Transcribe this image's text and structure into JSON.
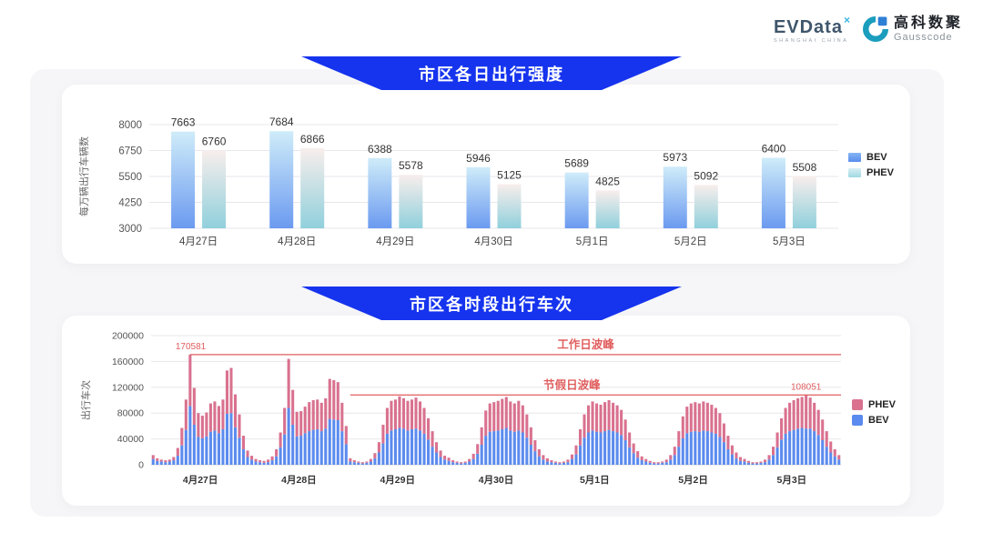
{
  "logo": {
    "evdata_text": "EVData",
    "evdata_sup": "×",
    "evdata_sub": "SHANGHAI CHINA",
    "gausscode_cn": "高科数聚",
    "gausscode_en": "Gausscode"
  },
  "colors": {
    "banner_blue": "#1634ee",
    "panel_gray": "#f6f6f8",
    "bev_blue": "#5b8bee",
    "phev_pink": "#d9718f",
    "annotation_red": "#e15e5e",
    "grid": "#e7e7ec"
  },
  "chart_data": [
    {
      "type": "bar",
      "title": "市区各日出行强度",
      "ylabel": "每万辆出行车辆数",
      "ylim": [
        3000,
        8000
      ],
      "yticks": [
        3000,
        4250,
        5500,
        6750,
        8000
      ],
      "grid": true,
      "legend_position": "right",
      "categories": [
        "4月27日",
        "4月28日",
        "4月29日",
        "4月30日",
        "5月1日",
        "5月2日",
        "5月3日"
      ],
      "series": [
        {
          "name": "BEV",
          "values": [
            7663,
            7684,
            6388,
            5946,
            5689,
            5973,
            6400
          ]
        },
        {
          "name": "PHEV",
          "values": [
            6760,
            6866,
            5578,
            5125,
            4825,
            5092,
            5508
          ]
        }
      ]
    },
    {
      "type": "bar",
      "stacked": true,
      "title": "市区各时段出行车次",
      "ylabel": "出行车次",
      "ylim": [
        0,
        200000
      ],
      "yticks": [
        0,
        40000,
        80000,
        120000,
        160000,
        200000
      ],
      "grid": true,
      "legend_position": "right",
      "legend": [
        "PHEV",
        "BEV"
      ],
      "hours_per_day": 24,
      "days": [
        {
          "date": "4月27日",
          "bev": [
            9000,
            6000,
            5000,
            4000,
            5000,
            7000,
            14000,
            30000,
            54000,
            91000,
            62000,
            43000,
            41000,
            44000,
            51000,
            53000,
            49000,
            55000,
            79000,
            80000,
            58000,
            42000,
            24000,
            12000
          ],
          "phev": [
            6000,
            4000,
            3000,
            3000,
            3000,
            5000,
            12000,
            27000,
            47000,
            79581,
            57000,
            37000,
            35000,
            37000,
            44000,
            45000,
            42000,
            46000,
            67000,
            70000,
            51000,
            36000,
            21000,
            10000
          ]
        },
        {
          "date": "4月28日",
          "bev": [
            8000,
            5000,
            4000,
            3000,
            4000,
            7000,
            13000,
            27000,
            47000,
            88000,
            62000,
            44000,
            45000,
            49000,
            52000,
            54000,
            55000,
            52000,
            56000,
            71000,
            70000,
            69000,
            52000,
            32000
          ],
          "phev": [
            6000,
            4000,
            3000,
            3000,
            4000,
            6000,
            11000,
            23000,
            41000,
            76000,
            54000,
            38000,
            38000,
            41000,
            45000,
            46000,
            46000,
            44000,
            47000,
            62000,
            61000,
            59000,
            44000,
            28000
          ]
        },
        {
          "date": "4月29日",
          "bev": [
            5000,
            4000,
            3000,
            2000,
            3000,
            5000,
            10000,
            19000,
            33000,
            48000,
            53000,
            55000,
            57000,
            56000,
            53000,
            55000,
            56000,
            53000,
            48000,
            39000,
            28000,
            19000,
            12000,
            8000
          ],
          "phev": [
            5000,
            3000,
            2000,
            2000,
            2000,
            4000,
            8000,
            16000,
            29000,
            40000,
            46000,
            46000,
            49000,
            47000,
            46000,
            46000,
            48000,
            45000,
            40000,
            33000,
            24000,
            16000,
            10000,
            6000
          ]
        },
        {
          "date": "4月30日",
          "bev": [
            6000,
            4000,
            3000,
            2000,
            3000,
            5000,
            9000,
            17000,
            31000,
            45000,
            51000,
            52000,
            53000,
            55000,
            57000,
            53000,
            51000,
            53000,
            50000,
            42000,
            31000,
            21000,
            13000,
            8000
          ],
          "phev": [
            5000,
            3000,
            2000,
            2000,
            2000,
            4000,
            8000,
            15000,
            27000,
            39000,
            44000,
            45000,
            46000,
            47000,
            48000,
            45000,
            44000,
            46000,
            42000,
            36000,
            27000,
            17000,
            11000,
            7000
          ]
        },
        {
          "date": "5月1日",
          "bev": [
            5000,
            4000,
            3000,
            2000,
            3000,
            4000,
            9000,
            16000,
            30000,
            42000,
            50000,
            53000,
            51000,
            50000,
            52000,
            54000,
            52000,
            50000,
            46000,
            38000,
            27000,
            18000,
            11000,
            7000
          ],
          "phev": [
            5000,
            3000,
            2000,
            2000,
            2000,
            4000,
            7000,
            14000,
            25000,
            36000,
            42000,
            45000,
            44000,
            43000,
            45000,
            46000,
            44000,
            42000,
            39000,
            32000,
            23000,
            15000,
            10000,
            6000
          ]
        },
        {
          "date": "5月2日",
          "bev": [
            5000,
            3000,
            2000,
            2000,
            3000,
            4000,
            8000,
            15000,
            28000,
            41000,
            49000,
            51000,
            52000,
            51000,
            53000,
            52000,
            50000,
            48000,
            43000,
            35000,
            24000,
            16000,
            10000,
            6000
          ],
          "phev": [
            4000,
            3000,
            2000,
            2000,
            2000,
            4000,
            7000,
            13000,
            24000,
            34000,
            41000,
            44000,
            45000,
            44000,
            45000,
            44000,
            43000,
            40000,
            37000,
            29000,
            21000,
            14000,
            9000,
            6000
          ]
        },
        {
          "date": "5月3日",
          "bev": [
            5000,
            3000,
            2000,
            2000,
            3000,
            4000,
            8000,
            15000,
            27000,
            39000,
            48000,
            52000,
            54000,
            56000,
            57000,
            56000,
            56000,
            52000,
            46000,
            38000,
            28000,
            19000,
            13000,
            8000
          ],
          "phev": [
            4000,
            3000,
            2000,
            2000,
            2000,
            4000,
            7000,
            13000,
            23000,
            33000,
            40000,
            44000,
            46000,
            47000,
            48000,
            52051,
            48000,
            44000,
            39000,
            32000,
            24000,
            17000,
            11000,
            7000
          ]
        }
      ],
      "annotations": [
        {
          "value": 170581,
          "value_label": "170581",
          "line_label": "工作日波峰",
          "start_day": 0,
          "start_hour": 9,
          "value_label_day": 0,
          "value_label_hour": 9,
          "line_label_frac": 0.63
        },
        {
          "value": 108051,
          "value_label": "108051",
          "line_label": "节假日波峰",
          "start_day": 2,
          "start_hour": 0,
          "value_label_day": 6,
          "value_label_hour": 15,
          "line_label_frac": 0.61
        }
      ]
    }
  ]
}
